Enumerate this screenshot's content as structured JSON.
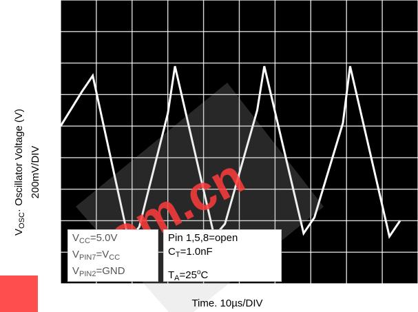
{
  "chart_data": {
    "type": "line",
    "ylabel": {
      "line1_sym": "V",
      "line1_sub": "OSC",
      "line1_rest": "· Oscillator Voltage (V)",
      "line2": "200mV/DIV"
    },
    "xlabel": "Time. 10µs/DIV",
    "grid": true,
    "x_unit": "divisions (10µs/DIV)",
    "y_unit": "divisions (200mV/DIV)",
    "xlim": [
      0,
      10
    ],
    "ylim": [
      -5,
      4
    ],
    "series": [
      {
        "x": [
          0,
          0.6,
          0.9,
          1.9,
          2.2,
          3.0,
          3.2,
          4.3,
          4.6,
          5.5,
          5.7,
          6.8,
          7.1,
          7.9,
          8.1,
          9.2,
          9.5
        ],
        "values": [
          0,
          1.1,
          1.6,
          -3.6,
          -3.2,
          0.4,
          1.9,
          -3.5,
          -3.1,
          0.5,
          1.9,
          -3.4,
          -2.9,
          0.1,
          1.9,
          -3.5,
          -3.0
        ]
      }
    ],
    "colors": {
      "background": "#000000",
      "grid": "#ffffff",
      "trace": "#ffffff"
    }
  },
  "notes": {
    "left": {
      "vcc_sym": "V",
      "vcc_sub": "CC",
      "vcc_val": "=5.0V",
      "pin7_sym": "V",
      "pin7_sub": "PIN7",
      "pin7_eq": "=V",
      "pin7_eq_sub": "CC",
      "pin2_sym": "V",
      "pin2_sub": "PIN2",
      "pin2_val": "=GND"
    },
    "right": {
      "pins": "Pin 1,5,8=open",
      "ct_sym": "C",
      "ct_sub": "T",
      "ct_val": "=1.0nF",
      "ta_sym": "T",
      "ta_sub": "A",
      "ta_val": "=25",
      "ta_sup": "o",
      "ta_unit": "C"
    }
  },
  "watermark": {
    "text": ".com.cn",
    "color": "#ff3b3b"
  }
}
